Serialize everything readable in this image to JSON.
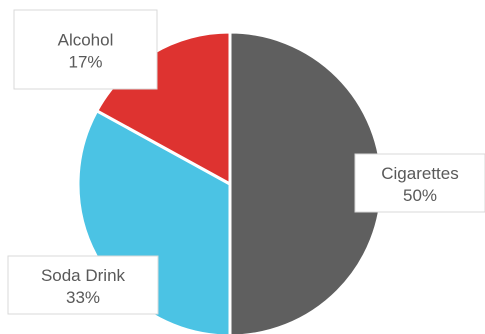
{
  "chart_data": {
    "type": "pie",
    "categories": [
      "Cigarettes",
      "Soda Drink",
      "Alcohol"
    ],
    "values": [
      50,
      33,
      17
    ],
    "value_labels": [
      "50%",
      "33%",
      "17%"
    ],
    "colors": [
      "#5f5f5f",
      "#4bc3e4",
      "#de3330"
    ],
    "legend": "none",
    "start_angle": "12 o'clock",
    "direction": "clockwise"
  }
}
